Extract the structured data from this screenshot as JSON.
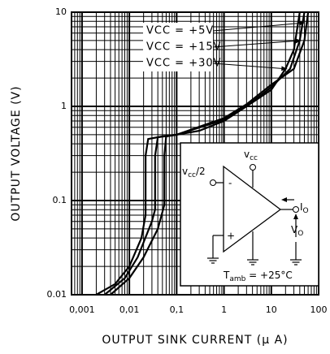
{
  "chart_data": {
    "type": "line",
    "x_label": "OUTPUT SINK CURRENT (μ A)",
    "y_label": "OUTPUT VOLTAGE (V)",
    "xscale": "log",
    "yscale": "log",
    "grid": true,
    "minor_grid": true,
    "xlim": [
      0.0006,
      100
    ],
    "xticks": [
      {
        "value": 0.001,
        "label": "0,001"
      },
      {
        "value": 0.01,
        "label": "0,01"
      },
      {
        "value": 0.1,
        "label": "0,1"
      },
      1,
      10,
      100
    ],
    "ylim": [
      0.01,
      10
    ],
    "yticks": [
      0.01,
      0.1,
      1,
      10
    ],
    "series": [
      {
        "name": "VCC = +5V",
        "color": "#000000",
        "x": [
          0.002,
          0.005,
          0.01,
          0.018,
          0.022,
          0.022,
          0.025,
          0.05,
          0.1,
          0.3,
          1,
          3,
          10,
          20,
          30,
          40
        ],
        "values": [
          0.01,
          0.013,
          0.02,
          0.04,
          0.07,
          0.3,
          0.45,
          0.48,
          0.5,
          0.55,
          0.7,
          1,
          1.5,
          2.5,
          4,
          10
        ]
      },
      {
        "name": "VCC = +15V",
        "color": "#000000",
        "x": [
          0.003,
          0.008,
          0.015,
          0.03,
          0.035,
          0.035,
          0.04,
          0.1,
          1,
          3,
          10,
          25,
          40,
          50
        ],
        "values": [
          0.01,
          0.015,
          0.025,
          0.06,
          0.08,
          0.3,
          0.47,
          0.5,
          0.72,
          1,
          1.6,
          2.5,
          5,
          10
        ]
      },
      {
        "name": "VCC = +30V",
        "color": "#000000",
        "x": [
          0.004,
          0.01,
          0.02,
          0.04,
          0.055,
          0.055,
          0.06,
          0.1,
          1,
          3,
          10,
          30,
          50,
          60
        ],
        "values": [
          0.01,
          0.015,
          0.025,
          0.05,
          0.09,
          0.3,
          0.48,
          0.5,
          0.75,
          1.05,
          1.7,
          2.5,
          5,
          10
        ]
      }
    ],
    "inset": {
      "vcc_half": {
        "base": "v",
        "sub": "cc",
        "rest": "/2"
      },
      "vcc": {
        "base": "v",
        "sub": "cc"
      },
      "io": {
        "base": "I",
        "sub": "O"
      },
      "vo": {
        "base": "V",
        "sub": "O"
      },
      "minus": "-",
      "plus": "+",
      "tamb": {
        "base": "T",
        "sub": "amb",
        "rest": " = +25°C"
      }
    }
  }
}
